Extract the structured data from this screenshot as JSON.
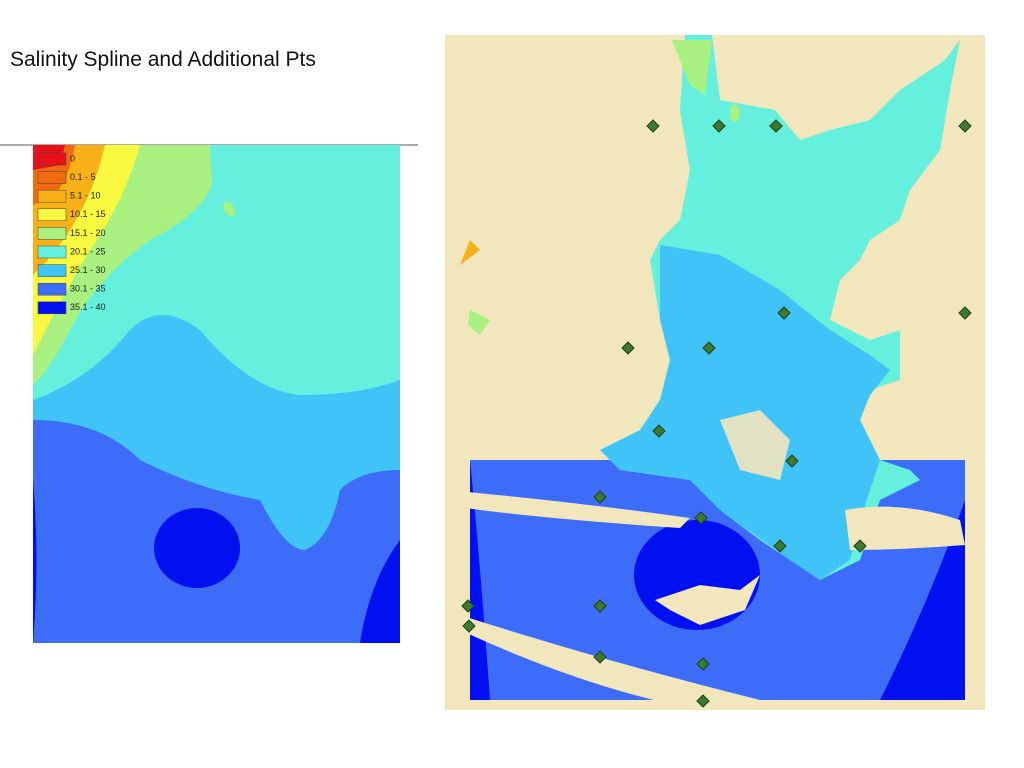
{
  "header": {
    "title": "Salinity Spline and Additional Pts"
  },
  "legend": {
    "items": [
      {
        "label": "0",
        "color": "#e8101a"
      },
      {
        "label": "0.1 - 5",
        "color": "#f06a10"
      },
      {
        "label": "5.1 - 10",
        "color": "#f8b018"
      },
      {
        "label": "10.1 - 15",
        "color": "#f8f840"
      },
      {
        "label": "15.1 - 20",
        "color": "#a8f080"
      },
      {
        "label": "20.1 - 25",
        "color": "#64f0dc"
      },
      {
        "label": "25.1 - 30",
        "color": "#40c4f8"
      },
      {
        "label": "30.1 - 35",
        "color": "#3c6cf8"
      },
      {
        "label": "35.1 - 40",
        "color": "#0010f0"
      }
    ]
  }
}
